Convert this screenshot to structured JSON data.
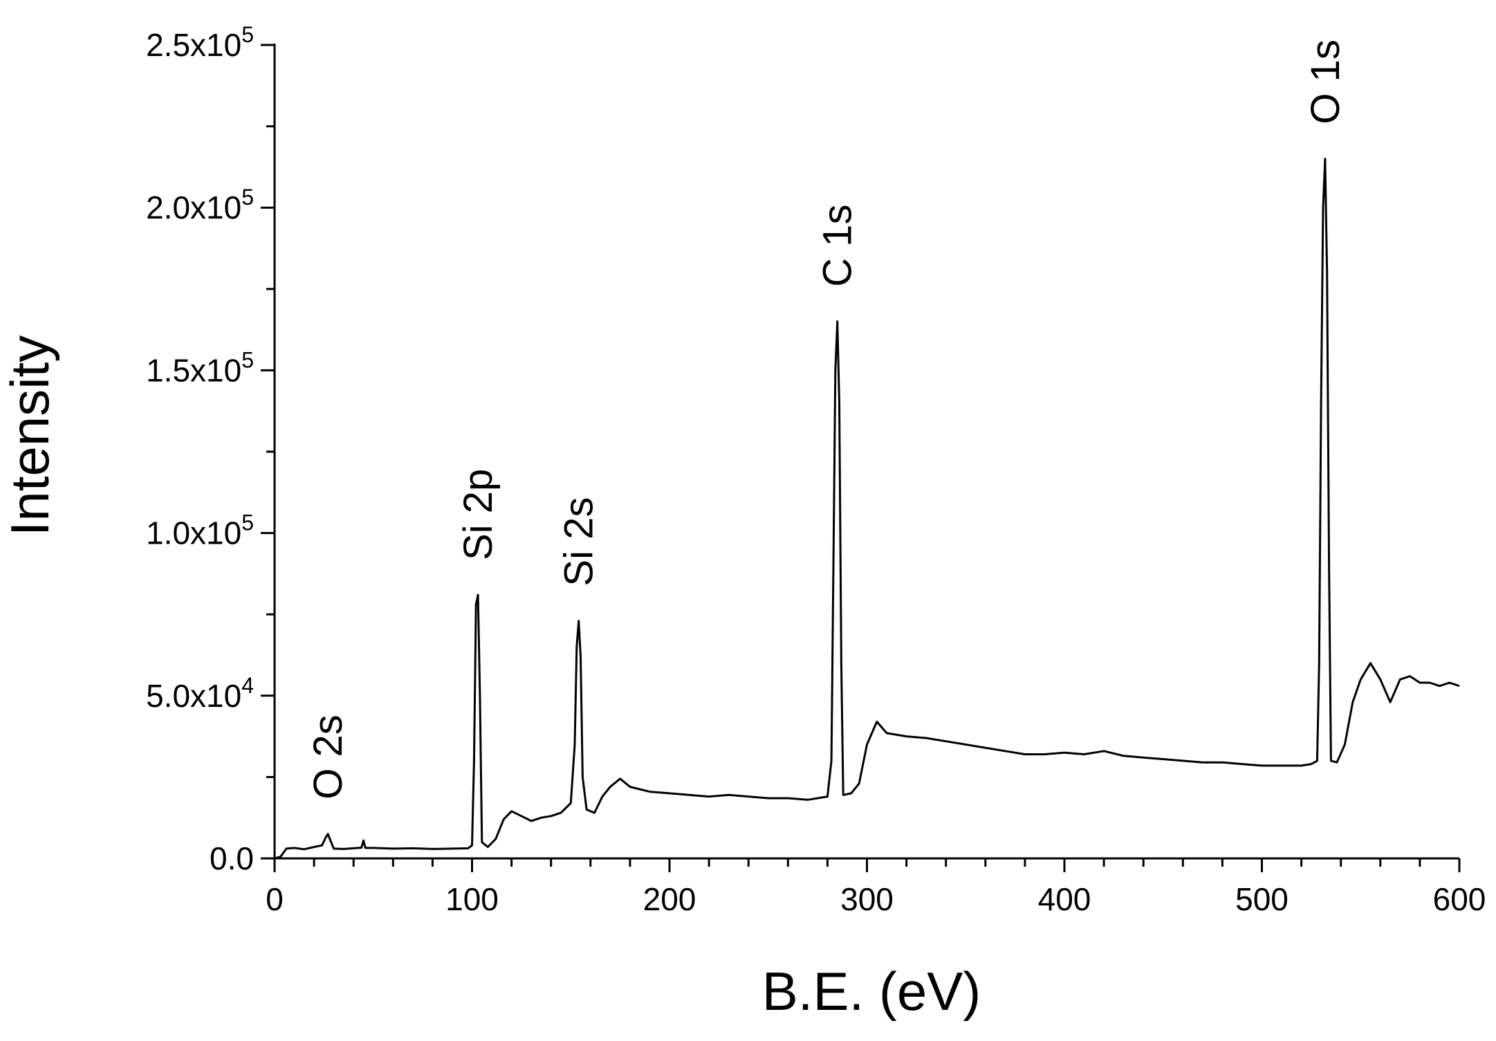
{
  "chart_data": {
    "type": "line",
    "title": "",
    "xlabel": "B.E. (eV)",
    "ylabel": "Intensity",
    "xlim": [
      0,
      600
    ],
    "ylim": [
      0,
      250000
    ],
    "grid": false,
    "x_ticks": [
      0,
      100,
      200,
      300,
      400,
      500,
      600
    ],
    "x_tick_labels": [
      "0",
      "100",
      "200",
      "300",
      "400",
      "500",
      "600"
    ],
    "y_ticks": [
      0,
      50000,
      100000,
      150000,
      200000,
      250000
    ],
    "y_tick_labels": [
      {
        "mantissa": "0.0",
        "exponent": ""
      },
      {
        "mantissa": "5.0x10",
        "exponent": "4"
      },
      {
        "mantissa": "1.0x10",
        "exponent": "5"
      },
      {
        "mantissa": "1.5x10",
        "exponent": "5"
      },
      {
        "mantissa": "2.0x10",
        "exponent": "5"
      },
      {
        "mantissa": "2.5x10",
        "exponent": "5"
      }
    ],
    "peak_labels": [
      {
        "text": "O 2s",
        "x": 27
      },
      {
        "text": "Si 2p",
        "x": 103
      },
      {
        "text": "Si 2s",
        "x": 154
      },
      {
        "text": "C 1s",
        "x": 285
      },
      {
        "text": "O 1s",
        "x": 532
      }
    ],
    "series": [
      {
        "color": "#000000",
        "points": [
          [
            0,
            0
          ],
          [
            3,
            500
          ],
          [
            6,
            3000
          ],
          [
            10,
            3200
          ],
          [
            15,
            2800
          ],
          [
            20,
            3500
          ],
          [
            24,
            4000
          ],
          [
            26,
            6500
          ],
          [
            27,
            7500
          ],
          [
            28,
            6000
          ],
          [
            30,
            3000
          ],
          [
            35,
            2900
          ],
          [
            40,
            3100
          ],
          [
            44,
            3300
          ],
          [
            45,
            5500
          ],
          [
            46,
            3200
          ],
          [
            50,
            3200
          ],
          [
            60,
            3000
          ],
          [
            70,
            3100
          ],
          [
            80,
            2900
          ],
          [
            90,
            3000
          ],
          [
            98,
            3100
          ],
          [
            100,
            4000
          ],
          [
            101,
            30000
          ],
          [
            102,
            78000
          ],
          [
            103,
            81000
          ],
          [
            104,
            50000
          ],
          [
            105,
            5000
          ],
          [
            108,
            3500
          ],
          [
            112,
            6000
          ],
          [
            116,
            12000
          ],
          [
            120,
            14500
          ],
          [
            125,
            13000
          ],
          [
            130,
            11500
          ],
          [
            135,
            12500
          ],
          [
            140,
            13000
          ],
          [
            145,
            14000
          ],
          [
            150,
            17000
          ],
          [
            152,
            35000
          ],
          [
            153,
            65000
          ],
          [
            154,
            73000
          ],
          [
            155,
            62000
          ],
          [
            156,
            25000
          ],
          [
            158,
            15000
          ],
          [
            162,
            14000
          ],
          [
            166,
            19000
          ],
          [
            170,
            22000
          ],
          [
            175,
            24500
          ],
          [
            180,
            22000
          ],
          [
            190,
            20500
          ],
          [
            200,
            20000
          ],
          [
            210,
            19500
          ],
          [
            220,
            19000
          ],
          [
            230,
            19500
          ],
          [
            240,
            19000
          ],
          [
            250,
            18500
          ],
          [
            260,
            18500
          ],
          [
            270,
            18000
          ],
          [
            280,
            19000
          ],
          [
            282,
            30000
          ],
          [
            283,
            90000
          ],
          [
            284,
            150000
          ],
          [
            285,
            165000
          ],
          [
            286,
            140000
          ],
          [
            287,
            60000
          ],
          [
            288,
            19500
          ],
          [
            292,
            20000
          ],
          [
            296,
            23000
          ],
          [
            300,
            35000
          ],
          [
            305,
            42000
          ],
          [
            310,
            38500
          ],
          [
            320,
            37500
          ],
          [
            330,
            37000
          ],
          [
            340,
            36000
          ],
          [
            350,
            35000
          ],
          [
            360,
            34000
          ],
          [
            370,
            33000
          ],
          [
            380,
            32000
          ],
          [
            390,
            32000
          ],
          [
            400,
            32500
          ],
          [
            410,
            32000
          ],
          [
            420,
            33000
          ],
          [
            430,
            31500
          ],
          [
            440,
            31000
          ],
          [
            450,
            30500
          ],
          [
            460,
            30000
          ],
          [
            470,
            29500
          ],
          [
            480,
            29500
          ],
          [
            490,
            29000
          ],
          [
            500,
            28500
          ],
          [
            510,
            28500
          ],
          [
            520,
            28500
          ],
          [
            525,
            29000
          ],
          [
            528,
            30000
          ],
          [
            529,
            60000
          ],
          [
            530,
            140000
          ],
          [
            531,
            200000
          ],
          [
            532,
            215000
          ],
          [
            533,
            180000
          ],
          [
            534,
            90000
          ],
          [
            535,
            30000
          ],
          [
            538,
            29500
          ],
          [
            542,
            35000
          ],
          [
            546,
            48000
          ],
          [
            550,
            55000
          ],
          [
            555,
            60000
          ],
          [
            560,
            55000
          ],
          [
            565,
            48000
          ],
          [
            570,
            55000
          ],
          [
            575,
            56000
          ],
          [
            580,
            54000
          ],
          [
            585,
            54000
          ],
          [
            590,
            53000
          ],
          [
            595,
            54000
          ],
          [
            600,
            53000
          ]
        ]
      }
    ]
  }
}
